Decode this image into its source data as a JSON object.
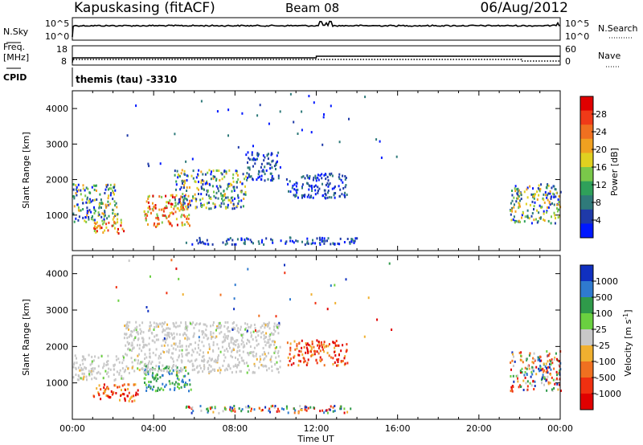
{
  "header": {
    "station": "Kapuskasing (fitACF)",
    "beam": "Beam 08",
    "date": "06/Aug/2012"
  },
  "top_panels": {
    "nsky": {
      "label": "N.Sky",
      "left_ticks": [
        "10^5",
        "10^0"
      ],
      "right_label": "N.Search",
      "right_ticks": [
        "10^5",
        "10^0"
      ]
    },
    "freq": {
      "label_line1": "Freq.",
      "label_line2": "[MHz]",
      "left_ticks": [
        "18",
        "8"
      ],
      "right_label": "Nave",
      "right_ticks": [
        "60",
        "0"
      ]
    },
    "cpid": {
      "label": "CPID",
      "program": "themis (tau) -3310"
    }
  },
  "chart_data": [
    {
      "type": "heatmap",
      "name": "power-panel",
      "quantity": "Power",
      "ylabel": "Slant Range [km]",
      "ylim": [
        0,
        4500
      ],
      "yticks": [
        1000,
        2000,
        3000,
        4000
      ],
      "xlim_hours": [
        0,
        24
      ],
      "colorbar": {
        "label": "Power [dB]",
        "ticks": [
          "4",
          "8",
          "12",
          "16",
          "20",
          "24",
          "28"
        ],
        "colors": [
          "#0018ff",
          "#1f3aa8",
          "#2f7a7a",
          "#2fa05a",
          "#7ac84a",
          "#e0d020",
          "#f0a020",
          "#f07020",
          "#f03a18",
          "#e00000"
        ]
      },
      "echo_regions": [
        {
          "t0": 0.0,
          "t1": 2.2,
          "r0": 800,
          "r1": 1900,
          "level": "mixed"
        },
        {
          "t0": 1.0,
          "t1": 2.6,
          "r0": 500,
          "r1": 900,
          "level": "high"
        },
        {
          "t0": 3.5,
          "t1": 5.8,
          "r0": 700,
          "r1": 1600,
          "level": "high"
        },
        {
          "t0": 5.0,
          "t1": 8.5,
          "r0": 1200,
          "r1": 2300,
          "level": "mixed"
        },
        {
          "t0": 8.5,
          "t1": 10.2,
          "r0": 2000,
          "r1": 2800,
          "level": "low"
        },
        {
          "t0": 5.5,
          "t1": 14.0,
          "r0": 200,
          "r1": 400,
          "level": "low"
        },
        {
          "t0": 10.5,
          "t1": 13.5,
          "r0": 1500,
          "r1": 2200,
          "level": "low"
        },
        {
          "t0": 21.5,
          "t1": 24.0,
          "r0": 800,
          "r1": 1900,
          "level": "mixed"
        }
      ]
    },
    {
      "type": "heatmap",
      "name": "velocity-panel",
      "quantity": "Velocity",
      "ylabel": "Slant Range [km]",
      "xlabel": "Time UT",
      "ylim": [
        0,
        4500
      ],
      "yticks": [
        1000,
        2000,
        3000,
        4000
      ],
      "xticks": [
        "00:00",
        "04:00",
        "08:00",
        "12:00",
        "16:00",
        "20:00",
        "00:00"
      ],
      "xlim_hours": [
        0,
        24
      ],
      "colorbar": {
        "label": "Velocity [m s-1]",
        "ticks": [
          "1000",
          "500",
          "100",
          "25",
          "-25",
          "-100",
          "-500",
          "-1000"
        ],
        "colors": [
          "#1030c0",
          "#2f7acf",
          "#2f9a4a",
          "#6ad040",
          "#c8c8c8",
          "#f0b030",
          "#f07020",
          "#f03010",
          "#e00000"
        ]
      },
      "echo_regions": [
        {
          "t0": 0.0,
          "t1": 2.5,
          "r0": 1100,
          "r1": 1800,
          "level": "neutral"
        },
        {
          "t0": 1.0,
          "t1": 3.2,
          "r0": 500,
          "r1": 1000,
          "level": "negative"
        },
        {
          "t0": 3.5,
          "t1": 5.8,
          "r0": 800,
          "r1": 1500,
          "level": "positive"
        },
        {
          "t0": 2.5,
          "t1": 10.2,
          "r0": 1300,
          "r1": 2700,
          "level": "neutral"
        },
        {
          "t0": 5.5,
          "t1": 14.0,
          "r0": 200,
          "r1": 400,
          "level": "mixed"
        },
        {
          "t0": 10.5,
          "t1": 13.5,
          "r0": 1500,
          "r1": 2200,
          "level": "negative"
        },
        {
          "t0": 21.5,
          "t1": 24.0,
          "r0": 800,
          "r1": 1900,
          "level": "mixed"
        }
      ]
    }
  ]
}
